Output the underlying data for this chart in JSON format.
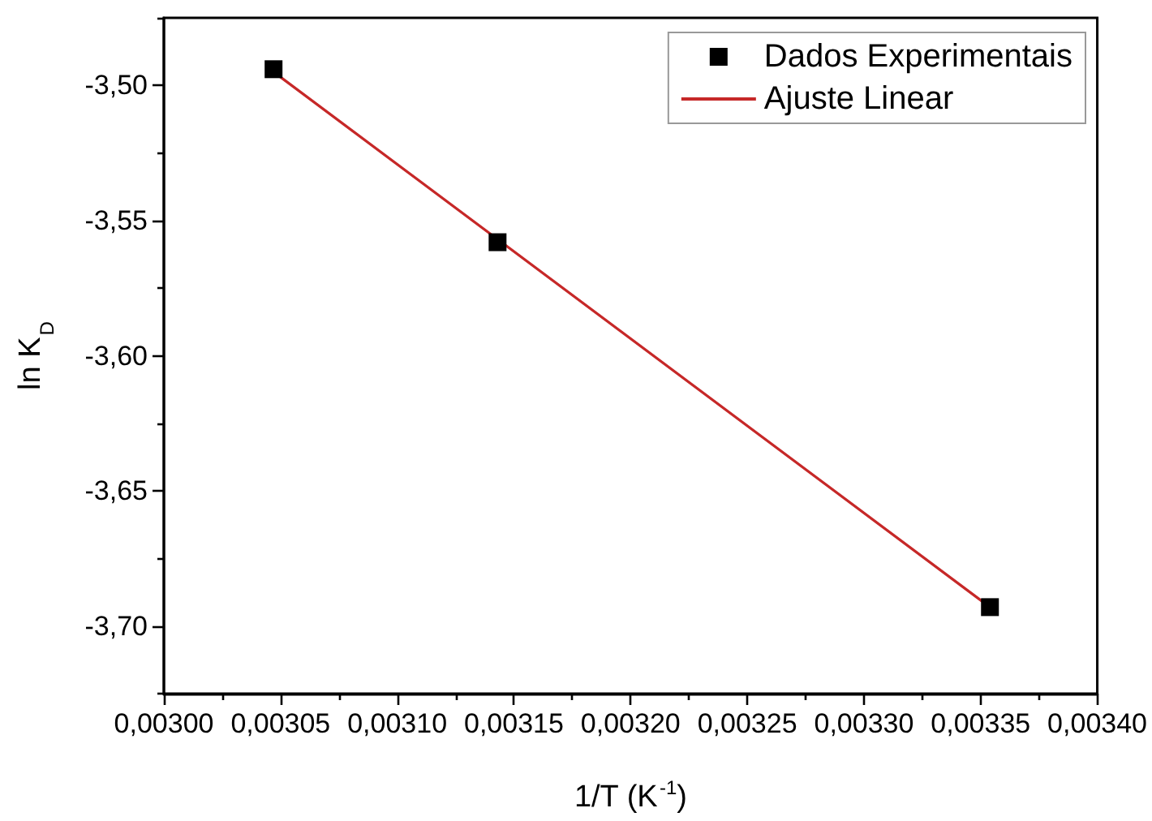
{
  "chart_data": {
    "type": "scatter",
    "xlabel": "1/T (K$^{-1}$)",
    "ylabel": "ln K$_{D}$",
    "xlim": [
      0.003,
      0.0034
    ],
    "ylim": [
      -3.725,
      -3.475
    ],
    "xticks": [
      {
        "value": 0.003,
        "label": "0,00300"
      },
      {
        "value": 0.003025,
        "label": null
      },
      {
        "value": 0.00305,
        "label": "0,00305"
      },
      {
        "value": 0.003075,
        "label": null
      },
      {
        "value": 0.0031,
        "label": "0,00310"
      },
      {
        "value": 0.003125,
        "label": null
      },
      {
        "value": 0.00315,
        "label": "0,00315"
      },
      {
        "value": 0.003175,
        "label": null
      },
      {
        "value": 0.0032,
        "label": "0,00320"
      },
      {
        "value": 0.003225,
        "label": null
      },
      {
        "value": 0.00325,
        "label": "0,00325"
      },
      {
        "value": 0.003275,
        "label": null
      },
      {
        "value": 0.0033,
        "label": "0,00330"
      },
      {
        "value": 0.003325,
        "label": null
      },
      {
        "value": 0.00335,
        "label": "0,00335"
      },
      {
        "value": 0.003375,
        "label": null
      },
      {
        "value": 0.0034,
        "label": "0,00340"
      }
    ],
    "yticks": [
      {
        "value": -3.725,
        "label": null
      },
      {
        "value": -3.7,
        "label": "-3,70"
      },
      {
        "value": -3.675,
        "label": null
      },
      {
        "value": -3.65,
        "label": "-3,65"
      },
      {
        "value": -3.625,
        "label": null
      },
      {
        "value": -3.6,
        "label": "-3,60"
      },
      {
        "value": -3.575,
        "label": null
      },
      {
        "value": -3.55,
        "label": "-3,55"
      },
      {
        "value": -3.525,
        "label": null
      },
      {
        "value": -3.5,
        "label": "-3,50"
      },
      {
        "value": -3.475,
        "label": null
      }
    ],
    "series": [
      {
        "name": "Dados Experimentais",
        "color": "#000000",
        "marker": "square",
        "x": [
          0.003047,
          0.003143,
          0.003354
        ],
        "values": [
          -3.494,
          -3.558,
          -3.693
        ]
      },
      {
        "name": "Ajuste Linear",
        "type": "line",
        "color": "#c62828",
        "line_style": "solid",
        "x": [
          0.003047,
          0.003354
        ],
        "values": [
          -3.495,
          -3.693
        ]
      }
    ],
    "legend": "top right",
    "grid": false
  }
}
